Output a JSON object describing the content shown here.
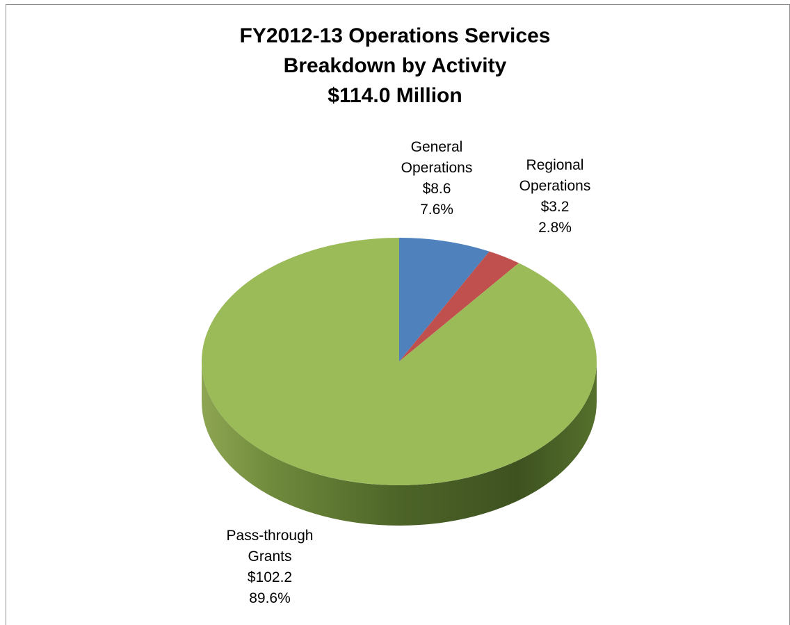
{
  "chart_data": {
    "type": "pie",
    "style": "3d",
    "title": [
      "FY2012-13 Operations Services",
      "Breakdown by Activity",
      "$114.0 Million"
    ],
    "units": "$ Million",
    "total": 114.0,
    "slices": [
      {
        "name": "General Operations",
        "label_lines": [
          "General",
          "Operations"
        ],
        "value_label": "$8.6",
        "percent_label": "7.6%",
        "value": 8.6,
        "percent": 7.6,
        "color": "#4f81bd"
      },
      {
        "name": "Regional Operations",
        "label_lines": [
          "Regional",
          "Operations"
        ],
        "value_label": "$3.2",
        "percent_label": "2.8%",
        "value": 3.2,
        "percent": 2.8,
        "color": "#c0504d"
      },
      {
        "name": "Pass-through Grants",
        "label_lines": [
          "Pass-through",
          "Grants"
        ],
        "value_label": "$102.2",
        "percent_label": "89.6%",
        "value": 102.2,
        "percent": 89.6,
        "color": "#9bbb59"
      }
    ],
    "legend": "none"
  }
}
